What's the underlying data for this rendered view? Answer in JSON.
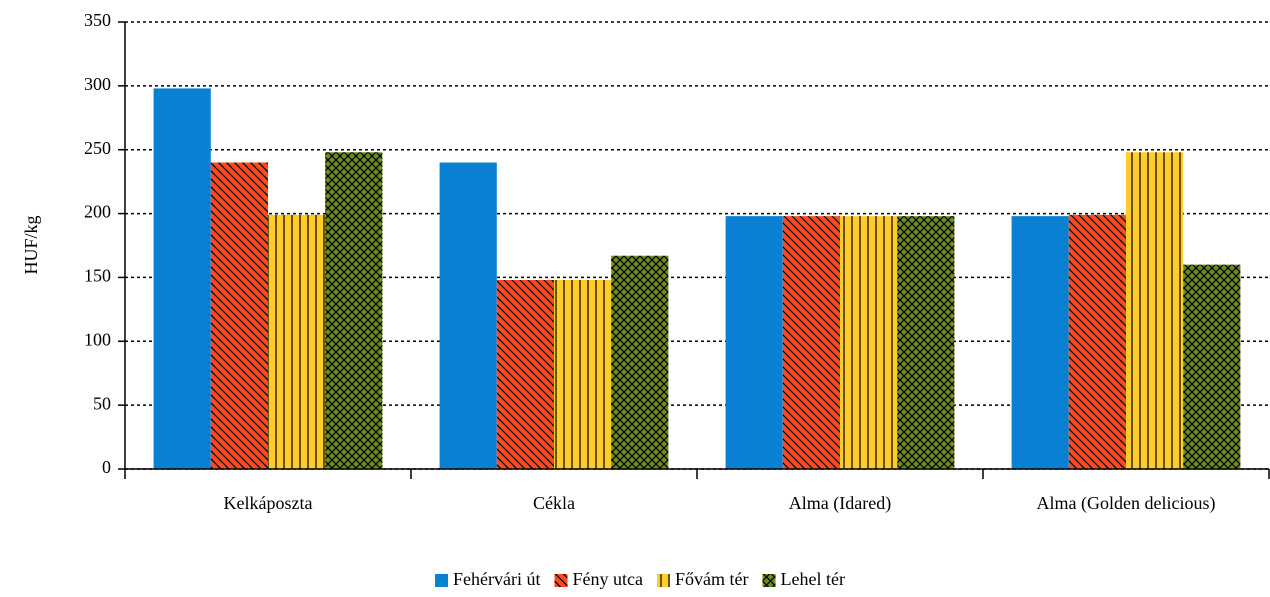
{
  "chart_data": {
    "type": "bar",
    "y_label": "HUF/kg",
    "categories": [
      "Kelkáposzta",
      "Cékla",
      "Alma (Idared)",
      "Alma (Golden delicious)"
    ],
    "series": [
      {
        "name": "Fehérvári út",
        "color": "#0a80d2",
        "pattern": "solid",
        "values": [
          298,
          240,
          198,
          198
        ]
      },
      {
        "name": "Fény utca",
        "color": "#ff4a1f",
        "pattern": "diagonal",
        "values": [
          240,
          148,
          198,
          199
        ]
      },
      {
        "name": "Fővám tér",
        "color": "#ffcc29",
        "pattern": "vertical",
        "values": [
          199,
          148,
          198,
          248
        ]
      },
      {
        "name": "Lehel tér",
        "color": "#6e8c1e",
        "pattern": "crosshatch",
        "values": [
          248,
          167,
          198,
          160
        ]
      }
    ],
    "ylim": [
      0,
      350
    ],
    "yticks": [
      0,
      50,
      100,
      150,
      200,
      250,
      300,
      350
    ],
    "grid": true,
    "legend": "bottom"
  }
}
